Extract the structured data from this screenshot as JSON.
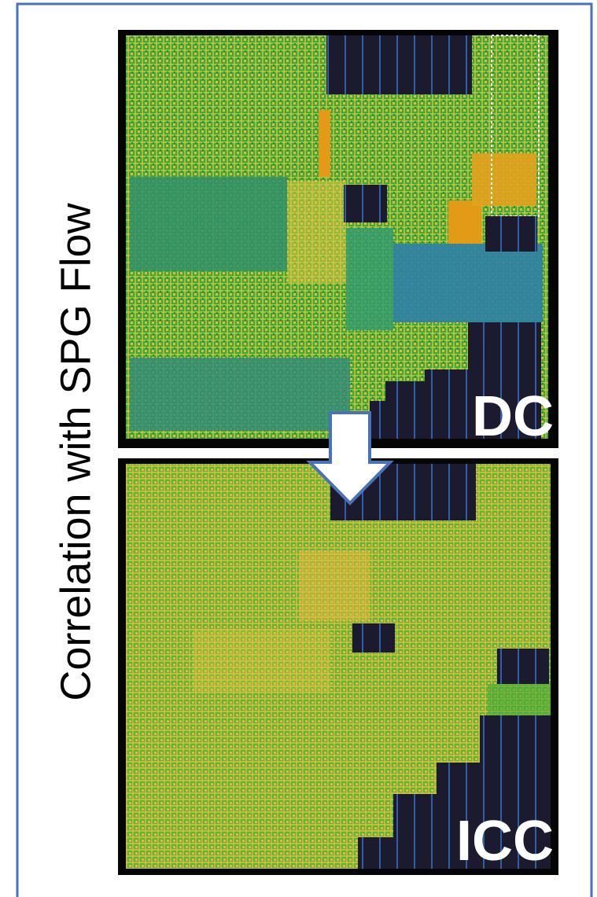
{
  "title": "Correlation with SPG Flow",
  "panels": [
    {
      "label": "DC"
    },
    {
      "label": "ICC"
    }
  ]
}
